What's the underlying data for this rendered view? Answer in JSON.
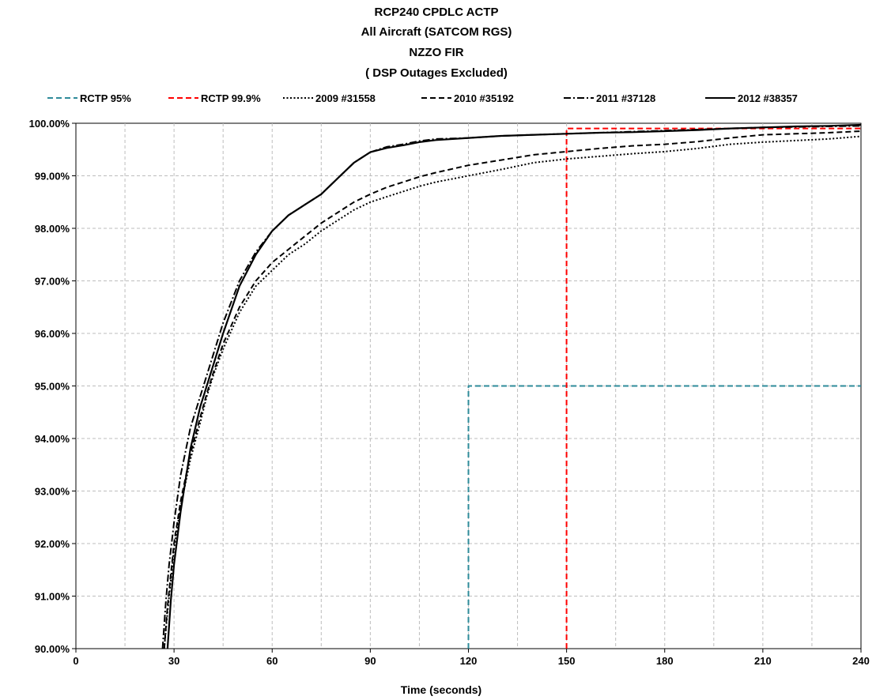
{
  "chart_data": {
    "type": "line",
    "title": [
      "RCP240 CPDLC  ACTP",
      "All Aircraft (SATCOM RGS)",
      "NZZO FIR",
      "( DSP Outages Excluded)"
    ],
    "xlabel": "Time (seconds)",
    "ylabel": "",
    "xlim": [
      0,
      240
    ],
    "ylim": [
      90,
      100
    ],
    "x_ticks": [
      0,
      30,
      60,
      90,
      120,
      150,
      180,
      210,
      240
    ],
    "x_tick_labels": [
      "0",
      "30",
      "60",
      "90",
      "120",
      "150",
      "180",
      "210",
      "240"
    ],
    "y_ticks": [
      90,
      91,
      92,
      93,
      94,
      95,
      96,
      97,
      98,
      99,
      100
    ],
    "y_tick_labels": [
      "90.00%",
      "91.00%",
      "92.00%",
      "93.00%",
      "94.00%",
      "95.00%",
      "96.00%",
      "97.00%",
      "98.00%",
      "99.00%",
      "100.00%"
    ],
    "grid": true,
    "legend_position": "top",
    "series": [
      {
        "name": "RCTP 95%",
        "color": "#2E8B9A",
        "dash": "dashed",
        "x": [
          120,
          120,
          240
        ],
        "y": [
          90,
          95,
          95
        ]
      },
      {
        "name": "RCTP 99.9%",
        "color": "#FF0000",
        "dash": "dashed",
        "x": [
          150,
          150,
          240
        ],
        "y": [
          90,
          99.9,
          99.9
        ]
      },
      {
        "name": "2009 #31558",
        "color": "#000000",
        "dash": "dotted",
        "x": [
          27,
          28,
          29,
          30,
          32,
          35,
          38,
          40,
          42,
          45,
          50,
          55,
          60,
          65,
          70,
          75,
          80,
          85,
          90,
          95,
          100,
          105,
          110,
          120,
          130,
          140,
          150,
          160,
          170,
          180,
          190,
          200,
          210,
          220,
          230,
          240
        ],
        "y": [
          90,
          90.7,
          91.3,
          91.9,
          92.7,
          93.6,
          94.3,
          94.8,
          95.2,
          95.7,
          96.4,
          96.9,
          97.2,
          97.5,
          97.7,
          97.95,
          98.15,
          98.35,
          98.5,
          98.6,
          98.7,
          98.8,
          98.88,
          99.0,
          99.12,
          99.25,
          99.32,
          99.37,
          99.42,
          99.46,
          99.52,
          99.6,
          99.64,
          99.67,
          99.7,
          99.75
        ]
      },
      {
        "name": "2010 #35192",
        "color": "#000000",
        "dash": "dashed",
        "x": [
          27,
          28,
          29,
          30,
          32,
          35,
          38,
          40,
          42,
          45,
          50,
          55,
          60,
          65,
          70,
          75,
          80,
          85,
          90,
          95,
          100,
          105,
          110,
          120,
          130,
          140,
          150,
          160,
          170,
          180,
          190,
          200,
          210,
          220,
          230,
          240
        ],
        "y": [
          90,
          90.8,
          91.4,
          92.0,
          92.8,
          93.7,
          94.4,
          94.85,
          95.25,
          95.8,
          96.5,
          97.0,
          97.35,
          97.6,
          97.85,
          98.1,
          98.3,
          98.5,
          98.65,
          98.78,
          98.88,
          98.98,
          99.06,
          99.2,
          99.3,
          99.4,
          99.46,
          99.52,
          99.57,
          99.6,
          99.65,
          99.72,
          99.78,
          99.8,
          99.82,
          99.85
        ]
      },
      {
        "name": "2011 #37128",
        "color": "#000000",
        "dash": "dashdot",
        "x": [
          26.5,
          27.5,
          28.5,
          30,
          32,
          35,
          38,
          40,
          42,
          45,
          50,
          55,
          60,
          65,
          70,
          75,
          80,
          85,
          90,
          95,
          100,
          105,
          110,
          120,
          130,
          140,
          150,
          160,
          170,
          180,
          190,
          200,
          210,
          220,
          230,
          240
        ],
        "y": [
          90,
          90.9,
          91.6,
          92.4,
          93.3,
          94.2,
          94.8,
          95.2,
          95.6,
          96.2,
          97.0,
          97.55,
          97.95,
          98.25,
          98.45,
          98.65,
          98.95,
          99.25,
          99.45,
          99.55,
          99.6,
          99.66,
          99.7,
          99.72,
          99.76,
          99.78,
          99.8,
          99.82,
          99.84,
          99.86,
          99.88,
          99.9,
          99.92,
          99.93,
          99.94,
          99.95
        ]
      },
      {
        "name": "2012 #38357",
        "color": "#000000",
        "dash": "solid",
        "x": [
          28,
          29,
          30,
          32,
          35,
          38,
          40,
          42,
          45,
          50,
          55,
          60,
          65,
          70,
          75,
          80,
          85,
          90,
          95,
          100,
          105,
          110,
          120,
          130,
          140,
          150,
          160,
          170,
          180,
          190,
          200,
          210,
          220,
          230,
          240
        ],
        "y": [
          90,
          90.9,
          91.6,
          92.6,
          93.8,
          94.6,
          95.0,
          95.4,
          96.0,
          96.9,
          97.5,
          97.95,
          98.25,
          98.45,
          98.65,
          98.95,
          99.25,
          99.45,
          99.53,
          99.58,
          99.64,
          99.68,
          99.72,
          99.76,
          99.78,
          99.8,
          99.82,
          99.83,
          99.85,
          99.87,
          99.9,
          99.92,
          99.94,
          99.95,
          99.97
        ]
      }
    ]
  }
}
